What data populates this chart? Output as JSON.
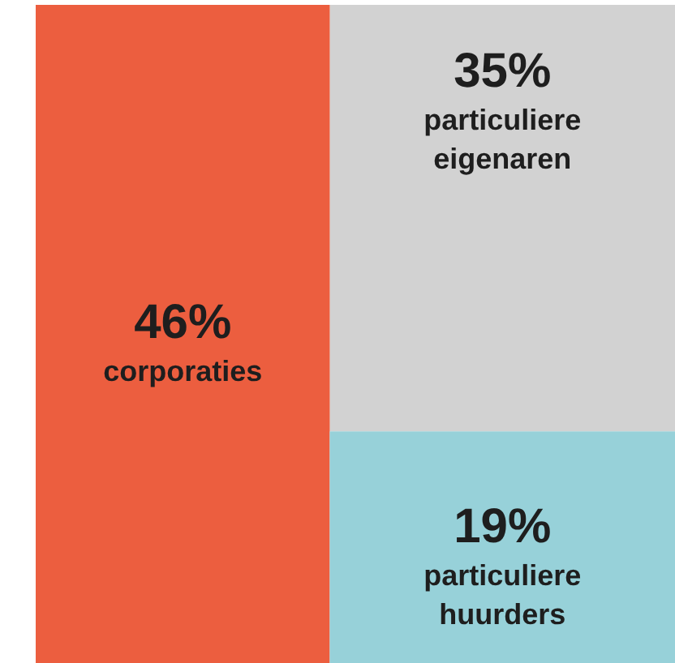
{
  "chart_data": {
    "type": "other",
    "categories": [
      "corporaties",
      "particuliere eigenaren",
      "particuliere huurders"
    ],
    "values": [
      46,
      35,
      19
    ],
    "value_labels": [
      "46%",
      "35%",
      "19%"
    ],
    "colors": [
      "#ec5e3f",
      "#d2d2d2",
      "#97d1d9"
    ]
  }
}
